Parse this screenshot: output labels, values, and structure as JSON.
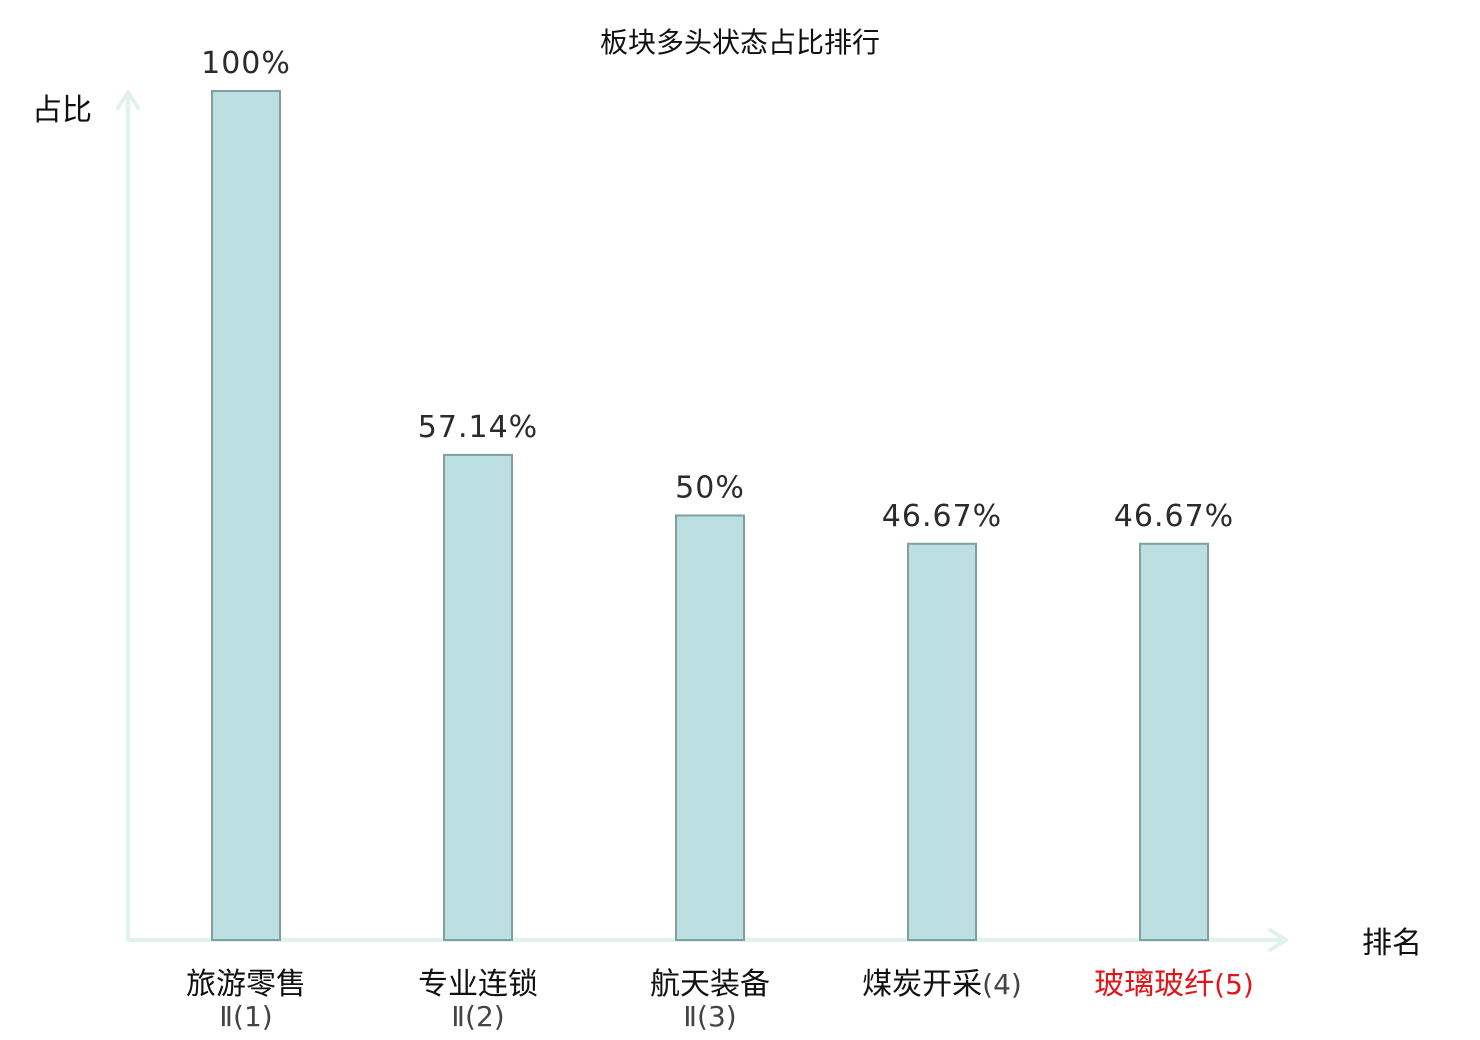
{
  "chart_data": {
    "type": "bar",
    "title": "板块多头状态占比排行",
    "ylabel": "占比",
    "xlabel": "排名",
    "ylim": [
      0,
      100
    ],
    "grid": false,
    "categories": [
      {
        "name": "旅游零售",
        "suffix": "",
        "sub": "Ⅱ(1)",
        "color": "#111111",
        "sub_color": "#444444"
      },
      {
        "name": "专业连锁",
        "suffix": "",
        "sub": "Ⅱ(2)",
        "color": "#111111",
        "sub_color": "#444444"
      },
      {
        "name": "航天装备",
        "suffix": "",
        "sub": "Ⅱ(3)",
        "color": "#111111",
        "sub_color": "#444444"
      },
      {
        "name": "煤炭开采",
        "suffix": "(4)",
        "sub": "",
        "color": "#111111",
        "sub_color": "#444444"
      },
      {
        "name": "玻璃玻纤",
        "suffix": "(5)",
        "sub": "",
        "color": "#e0161b",
        "sub_color": "#e0161b"
      }
    ],
    "values": [
      100,
      57.14,
      50,
      46.67,
      46.67
    ],
    "value_labels": [
      "100%",
      "57.14%",
      "50%",
      "46.67%",
      "46.67%"
    ],
    "bar_fill": "#bce0e1",
    "bar_stroke": "#7f9fa0",
    "axis_color": "#dff2ee"
  }
}
